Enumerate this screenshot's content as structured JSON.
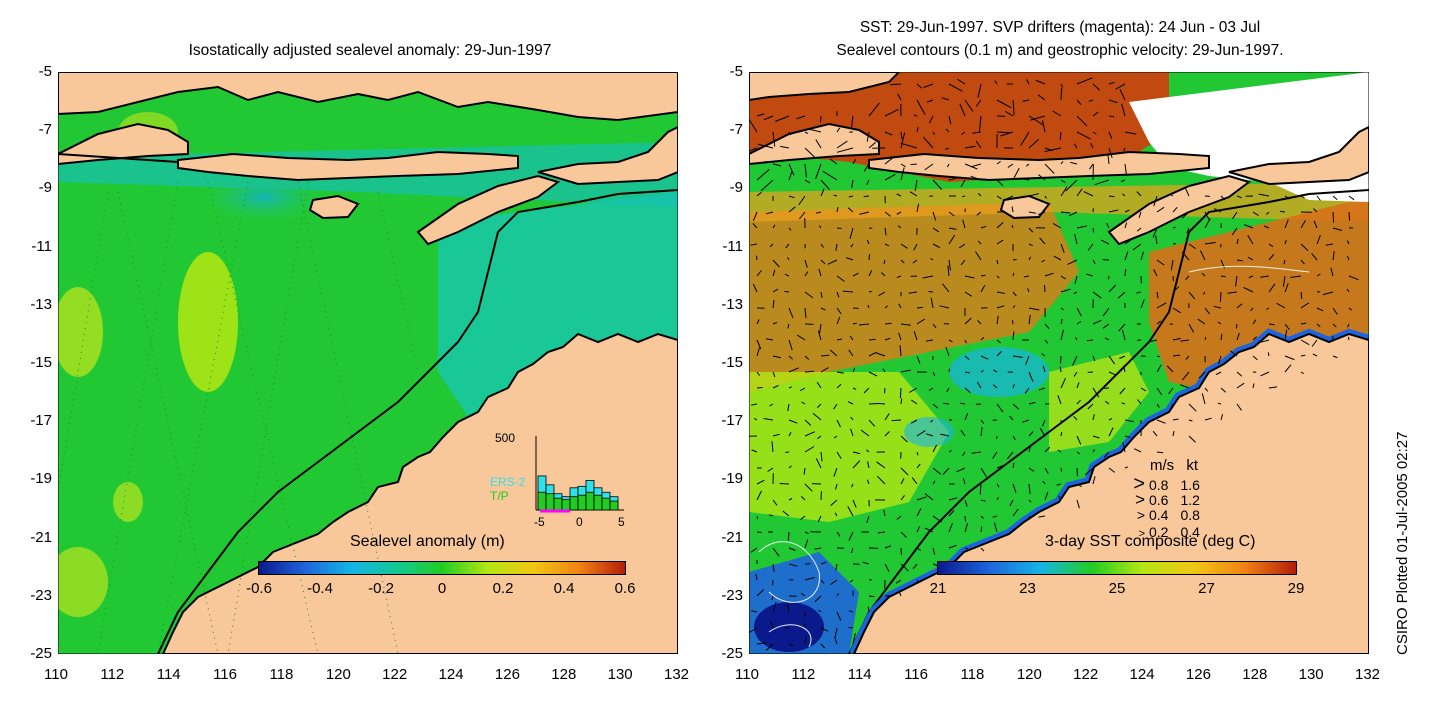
{
  "left_panel": {
    "title": "Isostatically adjusted sealevel anomaly: 29-Jun-1997",
    "colorbar": {
      "label": "Sealevel anomaly (m)",
      "ticks": [
        "-0.6",
        "-0.4",
        "-0.2",
        "0",
        "0.2",
        "0.4",
        "0.6"
      ],
      "range": [
        -0.6,
        0.6
      ],
      "colors": [
        "#0a1a8c",
        "#1e64dc",
        "#16b4e6",
        "#14c896",
        "#22cc22",
        "#b4e614",
        "#f0c814",
        "#f08214",
        "#b41e0a"
      ]
    },
    "inset_histogram": {
      "ymax_label": "500",
      "legend": [
        "ERS-2",
        "T/P"
      ],
      "legend_colors": [
        "#30e0e8",
        "#22cc22"
      ],
      "xticks": [
        "-5",
        "0",
        "5"
      ],
      "cyan_values": [
        230,
        170,
        110,
        90,
        150,
        160,
        200,
        150,
        120,
        90
      ],
      "green_values": [
        120,
        110,
        80,
        70,
        90,
        100,
        120,
        100,
        80,
        60
      ],
      "ymax": 500
    },
    "yticks": [
      "-5",
      "-7",
      "-9",
      "-11",
      "-13",
      "-15",
      "-17",
      "-19",
      "-21",
      "-23",
      "-25"
    ],
    "xticks": [
      "110",
      "112",
      "114",
      "116",
      "118",
      "120",
      "122",
      "124",
      "126",
      "128",
      "130",
      "132"
    ]
  },
  "right_panel": {
    "title_line1": "SST: 29-Jun-1997. SVP drifters (magenta): 24 Jun - 03 Jul",
    "title_line2": "Sealevel contours (0.1 m) and geostrophic velocity: 29-Jun-1997.",
    "colorbar": {
      "label": "3-day SST composite (deg C)",
      "ticks": [
        "21",
        "23",
        "25",
        "27",
        "29"
      ],
      "range": [
        21,
        29
      ],
      "colors": [
        "#0a1a8c",
        "#1e64dc",
        "#16b4e6",
        "#22cc22",
        "#b4e614",
        "#f0c814",
        "#f08214",
        "#b41e0a"
      ]
    },
    "velocity_legend": {
      "header_ms": "m/s",
      "header_kt": "kt",
      "rows": [
        {
          "ms": "0.8",
          "kt": "1.6"
        },
        {
          "ms": "0.6",
          "kt": "1.2"
        },
        {
          "ms": "0.4",
          "kt": "0.8"
        },
        {
          "ms": "0.2",
          "kt": "0.4"
        }
      ]
    },
    "yticks": [
      "-5",
      "-7",
      "-9",
      "-11",
      "-13",
      "-15",
      "-17",
      "-19",
      "-21",
      "-23",
      "-25"
    ],
    "xticks": [
      "110",
      "112",
      "114",
      "116",
      "118",
      "120",
      "122",
      "124",
      "126",
      "128",
      "130",
      "132"
    ]
  },
  "side_label": "CSIRO Plotted 01-Jul-2005 02:27",
  "colors": {
    "land": "#f8c89a",
    "ocean_base": "#22c833",
    "shelf_teal": "#14c8a0",
    "warm_sst": "#e07a18",
    "cloud": "#ffffff"
  },
  "map_extent": {
    "lon": [
      110,
      132
    ],
    "lat": [
      -25,
      -5
    ]
  }
}
